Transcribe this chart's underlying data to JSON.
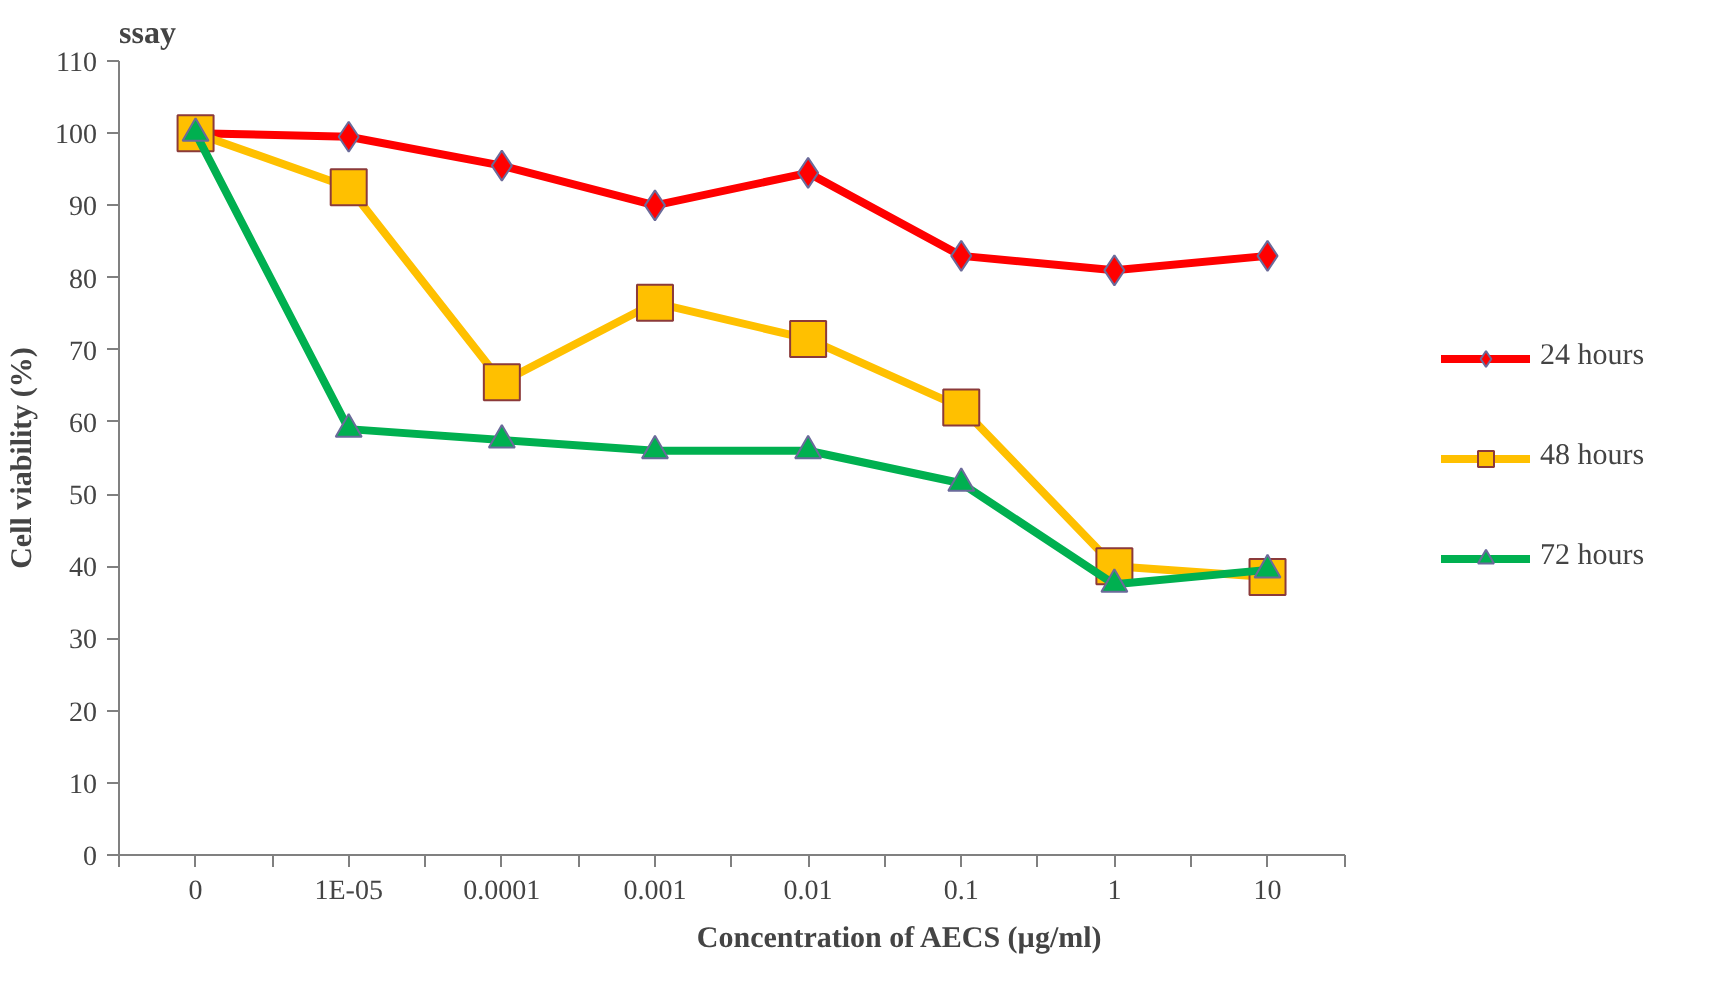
{
  "chart_data": {
    "type": "line",
    "title": "ssay",
    "xlabel": "Concentration of AECS (µg/ml)",
    "ylabel": "Cell viability (%)",
    "categories": [
      "0",
      "1E-05",
      "0.0001",
      "0.001",
      "0.01",
      "0.1",
      "1",
      "10"
    ],
    "series": [
      {
        "name": "24 hours",
        "color": "#ff0000",
        "marker": "diamond",
        "values": [
          100,
          99.5,
          95.5,
          90,
          94.5,
          83,
          81,
          83
        ]
      },
      {
        "name": "48 hours",
        "color": "#ffc000",
        "marker": "square",
        "values": [
          100,
          92.5,
          65.5,
          76.5,
          71.5,
          62,
          40,
          38.5
        ]
      },
      {
        "name": "72 hours",
        "color": "#00b050",
        "marker": "triangle",
        "values": [
          100,
          59,
          57.5,
          56,
          56,
          51.5,
          37.5,
          39.5
        ]
      }
    ],
    "ylim": [
      0,
      110
    ],
    "yticks": [
      0,
      10,
      20,
      30,
      40,
      50,
      60,
      70,
      80,
      90,
      100,
      110
    ],
    "grid": false,
    "legend": "right"
  }
}
